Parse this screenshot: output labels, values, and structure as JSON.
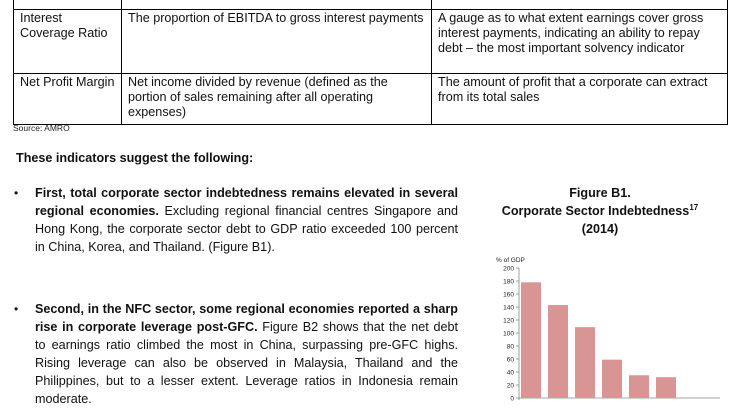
{
  "table": {
    "rows": [
      {
        "term": "",
        "definition": "",
        "meaning": ""
      },
      {
        "term": "Interest Coverage Ratio",
        "definition": "The proportion of EBITDA to gross interest payments",
        "meaning": "A gauge as to what extent earnings cover gross interest payments, indicating an ability to repay debt – the most important solvency indicator"
      },
      {
        "term": "Net Profit Margin",
        "definition": "Net income divided by revenue (defined as the portion of sales remaining after all operating expenses)",
        "meaning": "The amount of profit that a corporate can extract from its total sales"
      }
    ]
  },
  "source": "Source: AMRO",
  "intro": "These indicators suggest the following:",
  "bullets": [
    {
      "bold": "First, total corporate sector indebtedness remains elevated in several regional economies.",
      "text": " Excluding regional financial centres Singapore and Hong Kong, the corporate sector debt to GDP ratio exceeded 100 percent in China, Korea, and Thailand. (Figure B1)."
    },
    {
      "bold": "Second, in the NFC sector, some regional economies reported a sharp rise in corporate leverage post-GFC.",
      "text": " Figure B2 shows that the net debt to earnings ratio climbed the most in China, surpassing pre-GFC highs. Rising leverage can also be observed in Malaysia, Thailand and the Philippines, but to a lesser extent. Leverage ratios in Indonesia remain moderate."
    }
  ],
  "figure": {
    "label": "Figure B1.",
    "title": "Corporate Sector Indebtedness",
    "footnote": "17",
    "year": "(2014)"
  },
  "chart_data": {
    "type": "bar",
    "ylabel": "% of GDP",
    "ylim": [
      0,
      200
    ],
    "yticks": [
      "0",
      "20",
      "40",
      "60",
      "80",
      "100",
      "120",
      "140",
      "160",
      "180",
      "200"
    ],
    "categories": [
      "",
      "",
      "",
      "",
      "",
      ""
    ],
    "values": [
      178,
      143,
      109,
      59,
      35,
      32
    ],
    "bar_color": "#d99594",
    "grid": false
  }
}
